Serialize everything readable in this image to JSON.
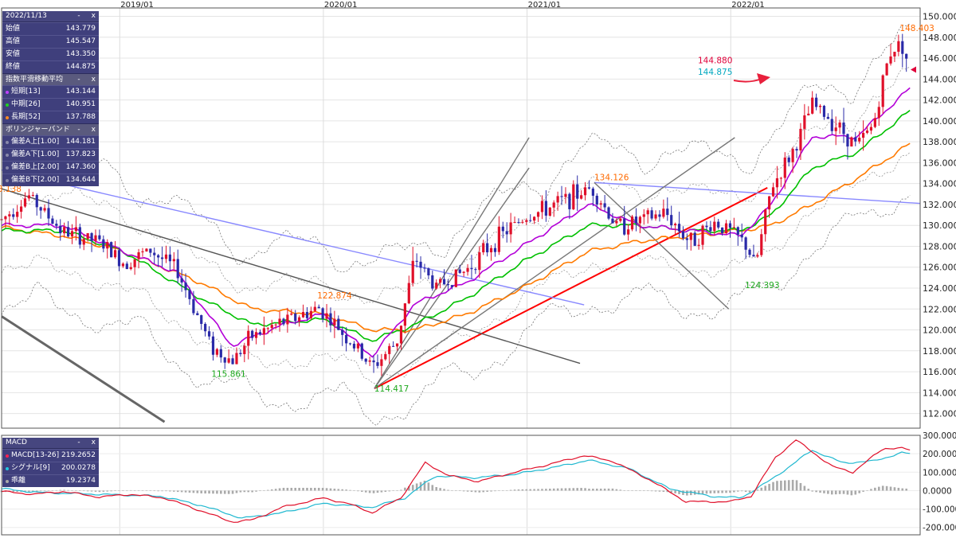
{
  "x_axis_labels": [
    "2019/01",
    "2020/01",
    "2021/01",
    "2022/01"
  ],
  "ohlc_panel": {
    "date": "2022/11/13",
    "rows": [
      {
        "label": "始値",
        "value": "143.779"
      },
      {
        "label": "高値",
        "value": "145.547"
      },
      {
        "label": "安値",
        "value": "143.350"
      },
      {
        "label": "終値",
        "value": "144.875"
      }
    ]
  },
  "ema_panel": {
    "title": "指数平滑移動平均",
    "rows": [
      {
        "label": "短期[13]",
        "value": "143.144",
        "color": "#b300d8"
      },
      {
        "label": "中期[26]",
        "value": "140.951",
        "color": "#00c000"
      },
      {
        "label": "長期[52]",
        "value": "137.788",
        "color": "#ff7a00"
      }
    ]
  },
  "bollinger_panel": {
    "title": "ボリンジャーバンド",
    "rows": [
      {
        "label": "偏差A上[1.00]",
        "value": "144.181"
      },
      {
        "label": "偏差A下[1.00]",
        "value": "137.823"
      },
      {
        "label": "偏差B上[2.00]",
        "value": "147.360"
      },
      {
        "label": "偏差B下[2.00]",
        "value": "134.644"
      }
    ]
  },
  "macd_panel": {
    "title": "MACD",
    "rows": [
      {
        "label": "MACD[13-26]",
        "value": "219.2652",
        "color": "#e0003a"
      },
      {
        "label": "シグナル[9]",
        "value": "200.0278",
        "color": "#00b7c9"
      },
      {
        "label": "乖離",
        "value": "19.2374",
        "color": "#999999"
      }
    ]
  },
  "panel_controls": {
    "minimize": "-",
    "close": "x"
  },
  "price_annotations": [
    {
      "text": "148.403",
      "x": 2022.83,
      "y": 148.6,
      "color": "#ff6a00"
    },
    {
      "text": "134.126",
      "x": 2021.33,
      "y": 134.3,
      "color": "#ff6a00"
    },
    {
      "text": "122.874",
      "x": 2019.97,
      "y": 123.0,
      "color": "#ff6a00"
    },
    {
      "text": "3.138",
      "x": 2018.4,
      "y": 133.2,
      "color": "#ff6a00"
    },
    {
      "text": "115.861",
      "x": 2019.45,
      "y": 115.5,
      "color": "#1ea81e"
    },
    {
      "text": "114.417",
      "x": 2020.25,
      "y": 114.1,
      "color": "#1ea81e"
    },
    {
      "text": "124.393",
      "x": 2022.07,
      "y": 124.0,
      "color": "#1ea81e"
    }
  ],
  "last_price_labels": [
    {
      "text": "144.880",
      "color": "#e0003a"
    },
    {
      "text": "144.875",
      "color": "#00a8c0"
    }
  ],
  "icons": {
    "arrow": "red-right-arrow-icon",
    "marker": "price-pointer-icon"
  },
  "chart_data": {
    "type": "candlestick",
    "x_range": [
      2018.42,
      2022.93
    ],
    "price_axis": {
      "ylim": [
        110.6,
        150.8
      ],
      "ticks": [
        "112.000",
        "114.000",
        "116.000",
        "118.000",
        "120.000",
        "122.000",
        "124.000",
        "126.000",
        "128.000",
        "130.000",
        "132.000",
        "134.000",
        "136.000",
        "138.000",
        "140.000",
        "142.000",
        "144.000",
        "146.000",
        "148.000",
        "150.000"
      ],
      "grid": true
    },
    "macd_axis": {
      "ylim": [
        -240,
        300
      ],
      "ticks": [
        "300.0000",
        "200.0000",
        "100.0000",
        "0.0000",
        "-100.0000",
        "-200.0000"
      ]
    },
    "price_keypoints": [
      [
        2018.42,
        130.5
      ],
      [
        2018.55,
        132.9
      ],
      [
        2018.72,
        129.4
      ],
      [
        2018.9,
        128.4
      ],
      [
        2019.02,
        126.4
      ],
      [
        2019.15,
        127.6
      ],
      [
        2019.28,
        125.8
      ],
      [
        2019.45,
        118.4
      ],
      [
        2019.55,
        117.0
      ],
      [
        2019.65,
        119.4
      ],
      [
        2019.8,
        120.7
      ],
      [
        2019.98,
        122.1
      ],
      [
        2020.1,
        119.6
      ],
      [
        2020.24,
        116.4
      ],
      [
        2020.36,
        118.8
      ],
      [
        2020.45,
        126.9
      ],
      [
        2020.55,
        124.1
      ],
      [
        2020.7,
        125.7
      ],
      [
        2020.85,
        128.7
      ],
      [
        2020.98,
        130.7
      ],
      [
        2021.1,
        131.6
      ],
      [
        2021.2,
        132.6
      ],
      [
        2021.32,
        133.6
      ],
      [
        2021.44,
        129.9
      ],
      [
        2021.55,
        130.4
      ],
      [
        2021.68,
        131.2
      ],
      [
        2021.8,
        128.4
      ],
      [
        2021.92,
        130.3
      ],
      [
        2022.0,
        129.4
      ],
      [
        2022.08,
        128.0
      ],
      [
        2022.12,
        126.0
      ],
      [
        2022.2,
        133.6
      ],
      [
        2022.32,
        137.6
      ],
      [
        2022.4,
        141.6
      ],
      [
        2022.52,
        139.6
      ],
      [
        2022.62,
        137.6
      ],
      [
        2022.7,
        139.6
      ],
      [
        2022.78,
        146.6
      ],
      [
        2022.84,
        147.5
      ],
      [
        2022.88,
        144.875
      ]
    ],
    "ema_short_keypoints": [
      [
        2018.42,
        130.0
      ],
      [
        2018.72,
        130.0
      ],
      [
        2019.02,
        127.5
      ],
      [
        2019.28,
        125.5
      ],
      [
        2019.55,
        118.5
      ],
      [
        2019.8,
        120.5
      ],
      [
        2020.0,
        121.5
      ],
      [
        2020.24,
        117.5
      ],
      [
        2020.45,
        122.5
      ],
      [
        2020.7,
        124.5
      ],
      [
        2020.98,
        128.0
      ],
      [
        2021.3,
        132.0
      ],
      [
        2021.55,
        130.0
      ],
      [
        2021.8,
        129.5
      ],
      [
        2022.05,
        129.0
      ],
      [
        2022.2,
        132.0
      ],
      [
        2022.4,
        138.5
      ],
      [
        2022.62,
        138.5
      ],
      [
        2022.88,
        143.1
      ]
    ],
    "ema_mid_keypoints": [
      [
        2018.42,
        129.5
      ],
      [
        2018.72,
        129.5
      ],
      [
        2019.02,
        127.5
      ],
      [
        2019.4,
        123.0
      ],
      [
        2019.65,
        120.5
      ],
      [
        2020.0,
        121.0
      ],
      [
        2020.24,
        119.0
      ],
      [
        2020.45,
        120.5
      ],
      [
        2020.7,
        123.0
      ],
      [
        2020.98,
        126.5
      ],
      [
        2021.3,
        130.0
      ],
      [
        2021.55,
        130.0
      ],
      [
        2021.8,
        129.5
      ],
      [
        2022.05,
        129.5
      ],
      [
        2022.2,
        131.0
      ],
      [
        2022.4,
        135.5
      ],
      [
        2022.62,
        137.0
      ],
      [
        2022.88,
        140.95
      ]
    ],
    "ema_long_keypoints": [
      [
        2018.42,
        129.8
      ],
      [
        2018.72,
        129.0
      ],
      [
        2019.02,
        127.5
      ],
      [
        2019.4,
        124.5
      ],
      [
        2019.65,
        122.0
      ],
      [
        2020.0,
        121.5
      ],
      [
        2020.24,
        120.0
      ],
      [
        2020.45,
        120.0
      ],
      [
        2020.7,
        121.5
      ],
      [
        2020.98,
        124.0
      ],
      [
        2021.3,
        127.5
      ],
      [
        2021.55,
        128.5
      ],
      [
        2021.8,
        129.0
      ],
      [
        2022.05,
        129.5
      ],
      [
        2022.2,
        130.0
      ],
      [
        2022.4,
        132.0
      ],
      [
        2022.62,
        134.5
      ],
      [
        2022.88,
        137.79
      ]
    ],
    "bollinger_width": {
      "sigma1": 3.2,
      "sigma2": 6.4
    },
    "trendlines": [
      {
        "color": "#ff0000",
        "points": [
          [
            2020.25,
            114.4
          ],
          [
            2022.18,
            133.6
          ]
        ]
      },
      {
        "color": "#8888ff",
        "points": [
          [
            2018.42,
            135.3
          ],
          [
            2021.28,
            122.4
          ]
        ]
      },
      {
        "color": "#8888ff",
        "points": [
          [
            2021.33,
            134.1
          ],
          [
            2022.93,
            132.1
          ]
        ]
      },
      {
        "color": "#555555",
        "points": [
          [
            2018.42,
            133.5
          ],
          [
            2021.26,
            116.8
          ]
        ]
      },
      {
        "color": "#666666",
        "points": [
          [
            2018.42,
            121.3
          ],
          [
            2019.22,
            111.2
          ]
        ]
      },
      {
        "color": "#777777",
        "points": [
          [
            2020.25,
            114.4
          ],
          [
            2021.01,
            135.5
          ]
        ]
      },
      {
        "color": "#777777",
        "points": [
          [
            2020.25,
            114.4
          ],
          [
            2021.01,
            138.4
          ]
        ]
      },
      {
        "color": "#777777",
        "points": [
          [
            2020.25,
            114.4
          ],
          [
            2022.02,
            138.4
          ]
        ]
      },
      {
        "color": "#777777",
        "points": [
          [
            2021.33,
            134.1
          ],
          [
            2021.99,
            122.0
          ]
        ]
      }
    ],
    "macd_keypoints": [
      [
        2018.42,
        -5
      ],
      [
        2018.58,
        -20
      ],
      [
        2018.72,
        -5
      ],
      [
        2018.9,
        -35
      ],
      [
        2019.05,
        -20
      ],
      [
        2019.22,
        -40
      ],
      [
        2019.4,
        -110
      ],
      [
        2019.55,
        -170
      ],
      [
        2019.65,
        -160
      ],
      [
        2019.8,
        -90
      ],
      [
        2020.0,
        -40
      ],
      [
        2020.12,
        -70
      ],
      [
        2020.24,
        -120
      ],
      [
        2020.38,
        -40
      ],
      [
        2020.5,
        150
      ],
      [
        2020.62,
        80
      ],
      [
        2020.76,
        50
      ],
      [
        2020.94,
        100
      ],
      [
        2021.1,
        140
      ],
      [
        2021.28,
        190
      ],
      [
        2021.42,
        160
      ],
      [
        2021.6,
        60
      ],
      [
        2021.78,
        -60
      ],
      [
        2022.0,
        -60
      ],
      [
        2022.1,
        -30
      ],
      [
        2022.22,
        180
      ],
      [
        2022.32,
        275
      ],
      [
        2022.5,
        130
      ],
      [
        2022.6,
        100
      ],
      [
        2022.75,
        230
      ],
      [
        2022.84,
        230
      ],
      [
        2022.88,
        219
      ]
    ],
    "signal_keypoints": [
      [
        2018.42,
        10
      ],
      [
        2018.6,
        -10
      ],
      [
        2018.9,
        -20
      ],
      [
        2019.2,
        -30
      ],
      [
        2019.4,
        -80
      ],
      [
        2019.6,
        -150
      ],
      [
        2019.8,
        -120
      ],
      [
        2020.0,
        -70
      ],
      [
        2020.24,
        -90
      ],
      [
        2020.4,
        -40
      ],
      [
        2020.55,
        80
      ],
      [
        2020.75,
        70
      ],
      [
        2020.95,
        90
      ],
      [
        2021.15,
        130
      ],
      [
        2021.3,
        165
      ],
      [
        2021.5,
        120
      ],
      [
        2021.7,
        10
      ],
      [
        2021.9,
        -30
      ],
      [
        2022.05,
        -40
      ],
      [
        2022.2,
        60
      ],
      [
        2022.4,
        220
      ],
      [
        2022.55,
        150
      ],
      [
        2022.7,
        160
      ],
      [
        2022.84,
        205
      ],
      [
        2022.88,
        200
      ]
    ]
  }
}
